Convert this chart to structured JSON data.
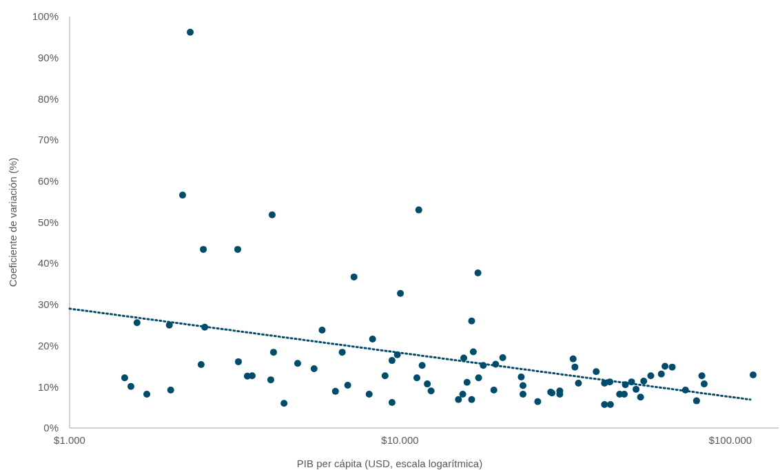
{
  "chart_data": {
    "type": "scatter",
    "xlabel": "PIB per cápita (USD, escala logarítmica)",
    "ylabel": "Coeficiente de variación (%)",
    "log": "x",
    "grid": false,
    "xlim": [
      1000,
      140000
    ],
    "xticks": [
      {
        "value": 1000,
        "label": "$1.000"
      },
      {
        "value": 10000,
        "label": "$10.000"
      },
      {
        "value": 100000,
        "label": "$100.000"
      }
    ],
    "ylim": [
      0,
      100
    ],
    "yticks": [
      {
        "value": 0,
        "label": "0%"
      },
      {
        "value": 10,
        "label": "10%"
      },
      {
        "value": 20,
        "label": "20%"
      },
      {
        "value": 30,
        "label": "30%"
      },
      {
        "value": 40,
        "label": "40%"
      },
      {
        "value": 50,
        "label": "50%"
      },
      {
        "value": 60,
        "label": "60%"
      },
      {
        "value": 70,
        "label": "70%"
      },
      {
        "value": 80,
        "label": "80%"
      },
      {
        "value": 90,
        "label": "90%"
      },
      {
        "value": 100,
        "label": "100%"
      }
    ],
    "series": [
      {
        "color": "#004c6d",
        "marker": "circle",
        "x": [
          1468,
          1533,
          1600,
          1713,
          2004,
          2023,
          2198,
          2318,
          2501,
          2540,
          2565,
          3228,
          3243,
          3452,
          3570,
          4064,
          4103,
          4143,
          4457,
          4902,
          5496,
          5812,
          6378,
          6686,
          6948,
          7258,
          8068,
          8262,
          9013,
          9461,
          9817,
          9461,
          10030,
          11250,
          11400,
          11670,
          12100,
          12420,
          15030,
          15490,
          15600,
          15960,
          16480,
          16480,
          16670,
          17220,
          17300,
          17870,
          19240,
          19480,
          20470,
          23280,
          23570,
          23570,
          26120,
          28590,
          28840,
          30460,
          30460,
          33430,
          33850,
          34690,
          39260,
          41600,
          43160,
          41600,
          43350,
          46230,
          47740,
          48110,
          50230,
          51830,
          53480,
          54680,
          57440,
          61820,
          63420,
          66680,
          73140,
          79030,
          81990,
          83330,
          117200
        ],
        "values": [
          12.2,
          10.1,
          25.6,
          8.2,
          25.0,
          9.2,
          56.6,
          96.2,
          15.4,
          43.4,
          24.5,
          43.4,
          16.1,
          12.6,
          12.7,
          11.7,
          51.8,
          18.4,
          6.0,
          15.7,
          14.4,
          23.8,
          8.9,
          18.4,
          10.4,
          36.7,
          8.2,
          21.6,
          12.7,
          16.4,
          17.8,
          6.2,
          32.7,
          12.2,
          53.0,
          15.2,
          10.7,
          9.0,
          6.9,
          8.2,
          17.0,
          11.1,
          26.0,
          6.9,
          18.5,
          37.7,
          12.2,
          15.2,
          9.2,
          15.5,
          17.1,
          12.4,
          10.3,
          8.2,
          6.4,
          8.7,
          8.5,
          9.0,
          8.2,
          16.8,
          14.8,
          10.9,
          13.7,
          10.9,
          11.2,
          5.7,
          5.7,
          8.2,
          8.2,
          10.5,
          11.2,
          9.4,
          7.5,
          11.4,
          12.7,
          13.1,
          15.0,
          14.8,
          9.2,
          6.6,
          12.7,
          10.7,
          12.9
        ]
      },
      {
        "type": "line",
        "color": "#004c6d",
        "line_style": "dotted",
        "marker": "none",
        "x": [
          1000,
          115000
        ],
        "values": [
          29.0,
          6.9
        ]
      }
    ]
  }
}
